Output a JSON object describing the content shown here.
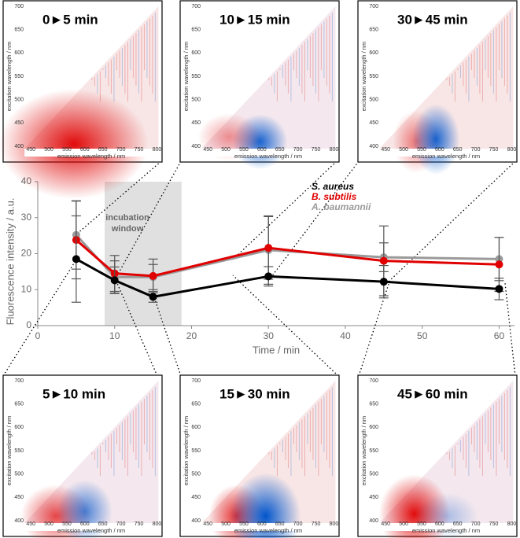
{
  "chart_data": {
    "type": "line",
    "xlabel": "Time / min",
    "ylabel": "Fluorescence intensity / a.u.",
    "x": [
      5,
      10,
      15,
      30,
      45,
      60
    ],
    "xlim": [
      0,
      62
    ],
    "ylim": [
      0,
      40
    ],
    "xticks": [
      0,
      10,
      20,
      30,
      40,
      50,
      60
    ],
    "yticks": [
      0,
      10,
      20,
      30,
      40
    ],
    "series": [
      {
        "name": "S. aureus",
        "color": "#000000",
        "values": [
          18.5,
          12.6,
          8.0,
          13.7,
          12.2,
          10.2
        ],
        "errors": [
          12.0,
          3.7,
          1.5,
          2.7,
          4.5,
          3.0
        ]
      },
      {
        "name": "B. subtilis",
        "color": "#e00000",
        "values": [
          23.8,
          14.5,
          13.8,
          21.6,
          18.0,
          17.0
        ],
        "errors": [
          10.8,
          5.0,
          4.7,
          8.7,
          9.7,
          7.5
        ]
      },
      {
        "name": "A. baumannii",
        "color": "#9a9a9a",
        "values": [
          25.2,
          13.5,
          13.5,
          21.0,
          19.0,
          18.5
        ],
        "errors": [
          9.5,
          4.5,
          3.5,
          9.5,
          4.0,
          6.0
        ]
      }
    ],
    "window": {
      "text": "incubation window",
      "range": [
        8.7,
        18.7
      ]
    },
    "legend": "upper right"
  },
  "inset_axes": {
    "xlabel": "emission wavelength / nm",
    "ylabel": "excitation wavelength / nm",
    "xlim": [
      430,
      810
    ],
    "ylim": [
      395,
      705
    ],
    "xticks": [
      450,
      500,
      550,
      600,
      650,
      700,
      750,
      800
    ],
    "yticks": [
      400,
      450,
      500,
      550,
      600,
      650,
      700
    ]
  },
  "insets": [
    {
      "title": "0►5 min"
    },
    {
      "title": "10►15 min"
    },
    {
      "title": "30►45 min"
    },
    {
      "title": "5►10 min"
    },
    {
      "title": "15►30 min"
    },
    {
      "title": "45►60 min"
    }
  ]
}
